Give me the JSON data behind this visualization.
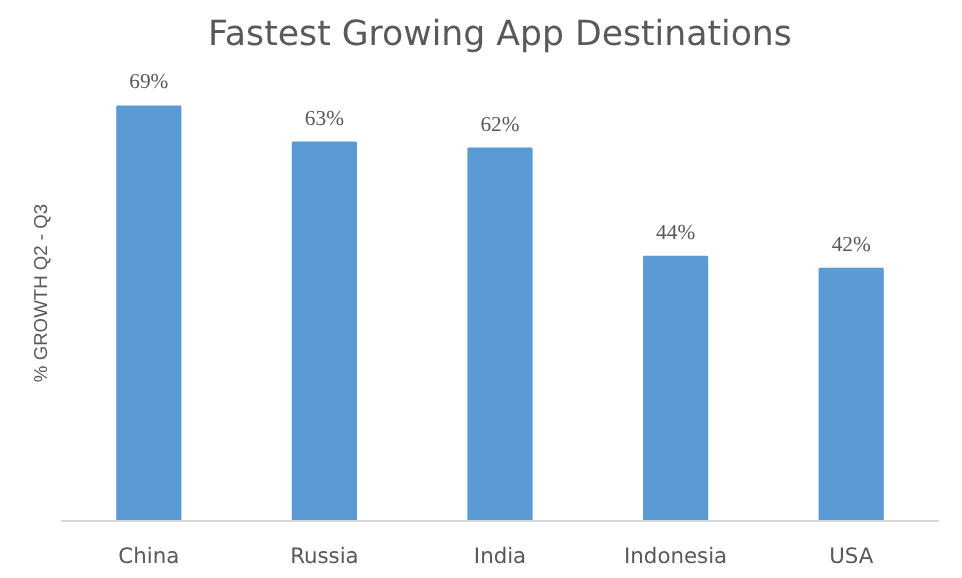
{
  "chart_data": {
    "type": "bar",
    "title": "Fastest Growing App Destinations",
    "ylabel": "% GROWTH Q2 - Q3",
    "categories": [
      "China",
      "Russia",
      "India",
      "Indonesia",
      "USA"
    ],
    "values": [
      69,
      63,
      62,
      44,
      42
    ],
    "value_labels": [
      "69%",
      "63%",
      "62%",
      "44%",
      "42%"
    ],
    "color": "#5b9bd5",
    "tick_labels": "x",
    "grid": false
  }
}
